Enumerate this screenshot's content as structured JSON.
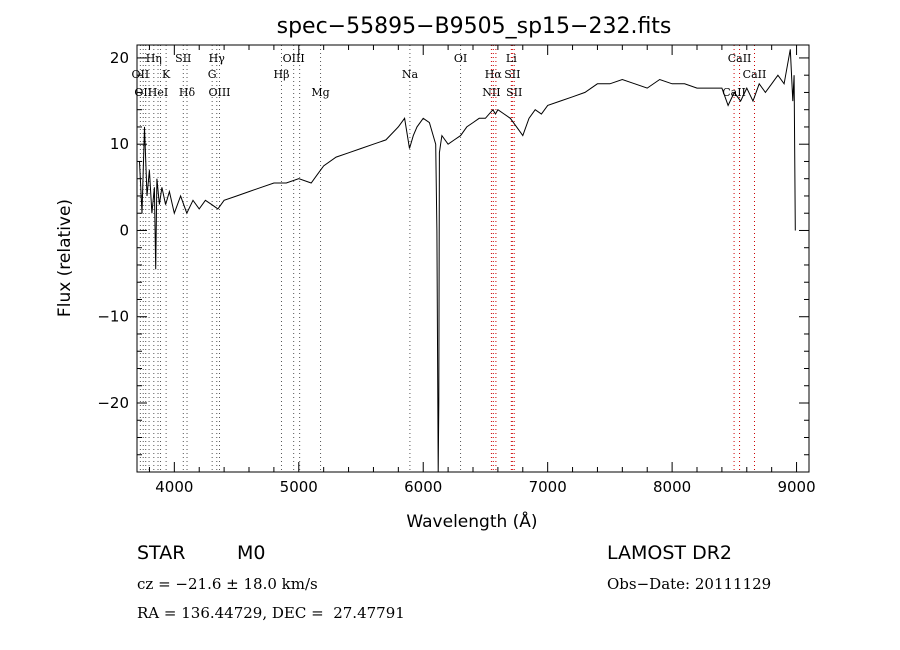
{
  "chart_data": {
    "type": "line",
    "title": "spec−55895−B9505_sp15−232.fits",
    "xlabel": "Wavelength (Å)",
    "ylabel": "Flux (relative)",
    "xlim": [
      3700,
      9100
    ],
    "ylim": [
      -28,
      21.5
    ],
    "xticks": [
      {
        "value": 4000,
        "label": "4000"
      },
      {
        "value": 5000,
        "label": "5000"
      },
      {
        "value": 6000,
        "label": "6000"
      },
      {
        "value": 7000,
        "label": "7000"
      },
      {
        "value": 8000,
        "label": "8000"
      },
      {
        "value": 9000,
        "label": "9000"
      }
    ],
    "yticks": [
      {
        "value": 20,
        "label": "20"
      },
      {
        "value": 10,
        "label": "10"
      },
      {
        "value": 0,
        "label": "0"
      },
      {
        "value": -10,
        "label": "−10"
      },
      {
        "value": -20,
        "label": "−20"
      }
    ],
    "series": [
      {
        "x": [
          3720,
          3740,
          3760,
          3780,
          3800,
          3820,
          3840,
          3850,
          3860,
          3880,
          3900,
          3930,
          3960,
          4000,
          4050,
          4100,
          4150,
          4200,
          4250,
          4300,
          4350,
          4400,
          4500,
          4600,
          4700,
          4800,
          4900,
          5000,
          5100,
          5150,
          5200,
          5300,
          5400,
          5500,
          5600,
          5700,
          5800,
          5850,
          5890,
          5920,
          5950,
          6000,
          6050,
          6080,
          6100,
          6110,
          6120,
          6125,
          6130,
          6140,
          6150,
          6200,
          6250,
          6300,
          6350,
          6400,
          6450,
          6500,
          6560,
          6580,
          6600,
          6650,
          6700,
          6750,
          6800,
          6850,
          6900,
          6950,
          7000,
          7100,
          7200,
          7300,
          7400,
          7500,
          7600,
          7700,
          7800,
          7900,
          8000,
          8100,
          8200,
          8300,
          8400,
          8450,
          8500,
          8550,
          8600,
          8650,
          8700,
          8750,
          8800,
          8850,
          8900,
          8950,
          8970,
          8980,
          8990
        ],
        "values": [
          8,
          2,
          12,
          4,
          7,
          2,
          5,
          -4.5,
          6,
          3,
          5,
          3,
          4.5,
          2,
          4,
          2,
          3.5,
          2.5,
          3.5,
          3,
          2.5,
          3.5,
          4,
          4.5,
          5,
          5.5,
          5.5,
          6,
          5.5,
          6.5,
          7.5,
          8.5,
          9,
          9.5,
          10,
          10.5,
          12,
          13,
          9.5,
          11,
          12,
          13,
          12.5,
          11,
          10,
          0,
          -28,
          -20,
          9,
          10,
          11,
          10,
          10.5,
          11,
          12,
          12.5,
          13,
          13,
          14,
          13.5,
          14,
          13.5,
          13,
          12,
          11,
          13,
          14,
          13.5,
          14.5,
          15,
          15.5,
          16,
          17,
          17,
          17.5,
          17,
          16.5,
          17.5,
          17,
          17,
          16.5,
          16.5,
          16.5,
          14.5,
          16,
          15,
          16.5,
          15,
          17,
          16,
          17,
          18,
          17,
          21,
          15,
          18,
          0
        ]
      }
    ],
    "lines": [
      {
        "x": 3727,
        "label": "OII",
        "row": 2,
        "style": "dotted-black"
      },
      {
        "x": 3750,
        "label": "OII",
        "row": 3,
        "style": "dotted-black"
      },
      {
        "x": 3770,
        "label": "",
        "style": "dotted-black"
      },
      {
        "x": 3797,
        "label": "",
        "style": "dotted-black"
      },
      {
        "x": 3835,
        "label": "Hη",
        "row": 1,
        "style": "dotted-black"
      },
      {
        "x": 3869,
        "label": "HeI",
        "row": 3,
        "style": "dotted-black"
      },
      {
        "x": 3889,
        "label": "",
        "style": "dotted-black"
      },
      {
        "x": 3934,
        "label": "K",
        "row": 2,
        "style": "dotted-black"
      },
      {
        "x": 4072,
        "label": "SII",
        "row": 1,
        "style": "dotted-black"
      },
      {
        "x": 4102,
        "label": "Hδ",
        "row": 3,
        "style": "dotted-black"
      },
      {
        "x": 4304,
        "label": "G",
        "row": 2,
        "style": "dotted-black"
      },
      {
        "x": 4341,
        "label": "Hγ",
        "row": 1,
        "style": "dotted-black"
      },
      {
        "x": 4363,
        "label": "OIII",
        "row": 3,
        "style": "dotted-black"
      },
      {
        "x": 4861,
        "label": "Hβ",
        "row": 2,
        "style": "dotted-black"
      },
      {
        "x": 4959,
        "label": "OIII",
        "row": 1,
        "style": "dotted-black"
      },
      {
        "x": 5007,
        "label": "",
        "style": "dotted-black"
      },
      {
        "x": 5175,
        "label": "Mg",
        "row": 3,
        "style": "dotted-black"
      },
      {
        "x": 5893,
        "label": "Na",
        "row": 2,
        "style": "dotted-black"
      },
      {
        "x": 6300,
        "label": "OI",
        "row": 1,
        "style": "dotted-black"
      },
      {
        "x": 6548,
        "label": "NII",
        "row": 3,
        "style": "dotted-red"
      },
      {
        "x": 6563,
        "label": "Hα",
        "row": 2,
        "style": "dotted-red"
      },
      {
        "x": 6584,
        "label": "",
        "style": "dotted-red"
      },
      {
        "x": 6708,
        "label": "Li",
        "row": 1,
        "style": "dotted-red"
      },
      {
        "x": 6716,
        "label": "SII",
        "row": 2,
        "style": "dotted-red"
      },
      {
        "x": 6731,
        "label": "SII",
        "row": 3,
        "style": "dotted-red"
      },
      {
        "x": 8498,
        "label": "CaII",
        "row": 3,
        "style": "dotted-red"
      },
      {
        "x": 8542,
        "label": "CaII",
        "row": 1,
        "style": "dotted-red"
      },
      {
        "x": 8662,
        "label": "CaII",
        "row": 2,
        "style": "dotted-red"
      }
    ],
    "grid": false,
    "legend": "none"
  },
  "info": {
    "class_label": "STAR",
    "subclass": "M0",
    "survey": "LAMOST DR2",
    "velocity": "cz = −21.6 ± 18.0 km/s",
    "obs_date": "Obs−Date: 20111129",
    "coords": "RA = 136.44729, DEC =  27.47791"
  }
}
